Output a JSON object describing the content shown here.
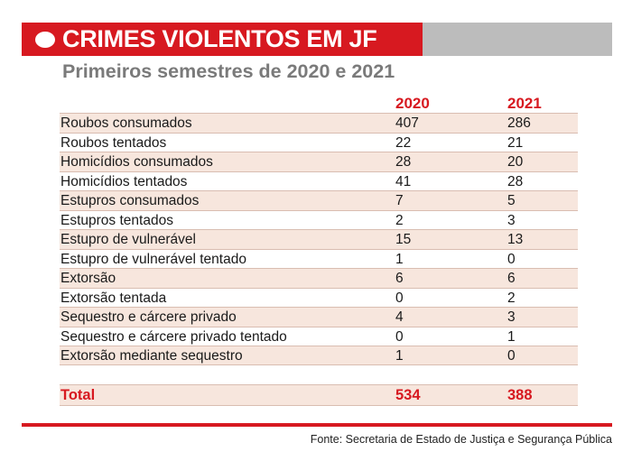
{
  "header": {
    "title": "CRIMES VIOLENTOS EM JF",
    "subtitle": "Primeiros semestres de 2020 e 2021"
  },
  "table": {
    "columns": [
      "2020",
      "2021"
    ],
    "rows": [
      {
        "label": "Roubos consumados",
        "v2020": "407",
        "v2021": "286"
      },
      {
        "label": "Roubos tentados",
        "v2020": "22",
        "v2021": "21"
      },
      {
        "label": "Homicídios consumados",
        "v2020": "28",
        "v2021": "20"
      },
      {
        "label": "Homicídios tentados",
        "v2020": "41",
        "v2021": "28"
      },
      {
        "label": "Estupros consumados",
        "v2020": "7",
        "v2021": "5"
      },
      {
        "label": "Estupros tentados",
        "v2020": "2",
        "v2021": "3"
      },
      {
        "label": "Estupro de vulnerável",
        "v2020": "15",
        "v2021": "13"
      },
      {
        "label": "Estupro de vulnerável tentado",
        "v2020": "1",
        "v2021": "0"
      },
      {
        "label": "Extorsão",
        "v2020": "6",
        "v2021": "6"
      },
      {
        "label": "Extorsão tentada",
        "v2020": "0",
        "v2021": "2"
      },
      {
        "label": "Sequestro e cárcere privado",
        "v2020": "4",
        "v2021": "3"
      },
      {
        "label": "Sequestro e cárcere privado tentado",
        "v2020": "0",
        "v2021": "1"
      },
      {
        "label": "Extorsão mediante sequestro",
        "v2020": "1",
        "v2021": "0"
      }
    ],
    "total": {
      "label": "Total",
      "v2020": "534",
      "v2021": "388"
    }
  },
  "source": "Fonte: Secretaria de Estado de Justiça e Segurança Pública",
  "colors": {
    "accent": "#d71920",
    "banner_gray": "#bcbcbc",
    "row_tint": "#f7e6dd",
    "subtitle": "#7a7a7a"
  }
}
